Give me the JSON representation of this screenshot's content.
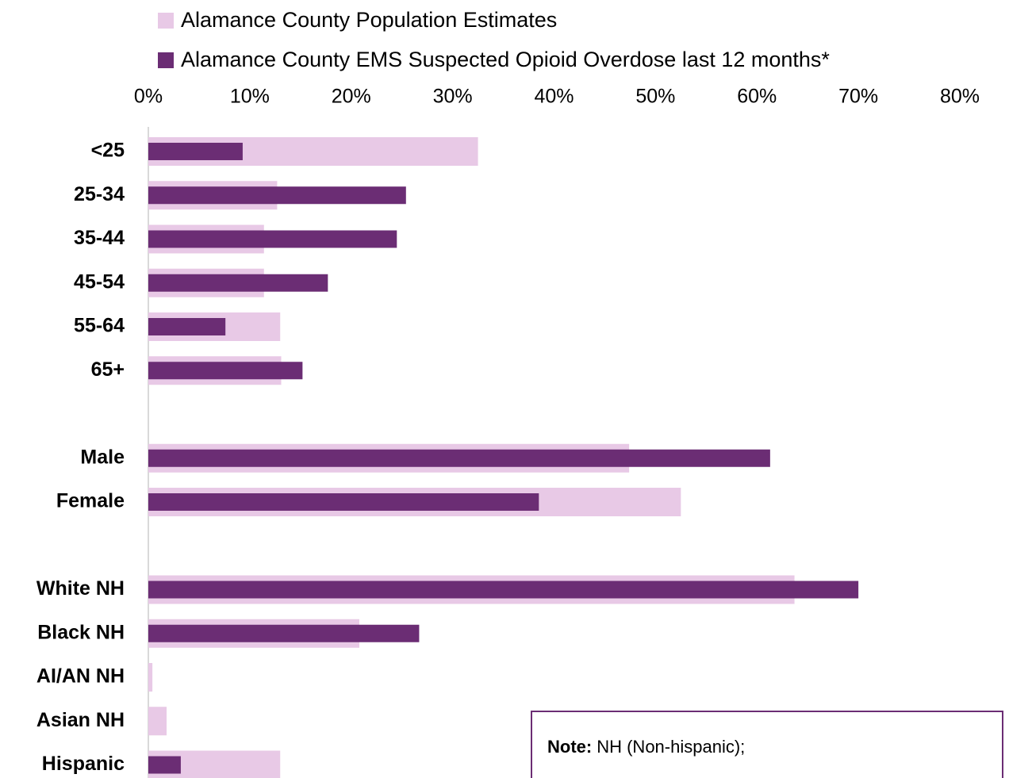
{
  "chart_data": {
    "type": "bar",
    "orientation": "horizontal",
    "overlap": true,
    "categories": [
      "<25",
      "25-34",
      "35-44",
      "45-54",
      "55-64",
      "65+",
      null,
      "Male",
      "Female",
      null,
      "White NH",
      "Black NH",
      "AI/AN NH",
      "Asian NH",
      "Hispanic"
    ],
    "series": [
      {
        "name": "Alamance County Population Estimates",
        "color": "#e8c9e6",
        "values": [
          32.5,
          12.7,
          11.4,
          11.4,
          13.0,
          13.1,
          null,
          47.4,
          52.5,
          null,
          63.7,
          20.8,
          0.4,
          1.8,
          13.0
        ]
      },
      {
        "name": "Alamance County EMS Suspected Opioid Overdose last 12 months*",
        "color": "#6b2d74",
        "values": [
          9.3,
          25.4,
          24.5,
          17.7,
          7.6,
          15.2,
          null,
          61.3,
          38.5,
          null,
          70.0,
          26.7,
          0,
          0,
          3.2
        ]
      }
    ],
    "xlim": [
      0,
      80
    ],
    "xticks": [
      {
        "value": 0,
        "label": "0%"
      },
      {
        "value": 10,
        "label": "10%"
      },
      {
        "value": 20,
        "label": "20%"
      },
      {
        "value": 30,
        "label": "30%"
      },
      {
        "value": 40,
        "label": "40%"
      },
      {
        "value": 50,
        "label": "50%"
      },
      {
        "value": 60,
        "label": "60%"
      },
      {
        "value": 70,
        "label": "70%"
      },
      {
        "value": 80,
        "label": "80%"
      }
    ],
    "legend": "top",
    "note": {
      "label": "Note:",
      "text": "NH (Non-hispanic);"
    }
  }
}
